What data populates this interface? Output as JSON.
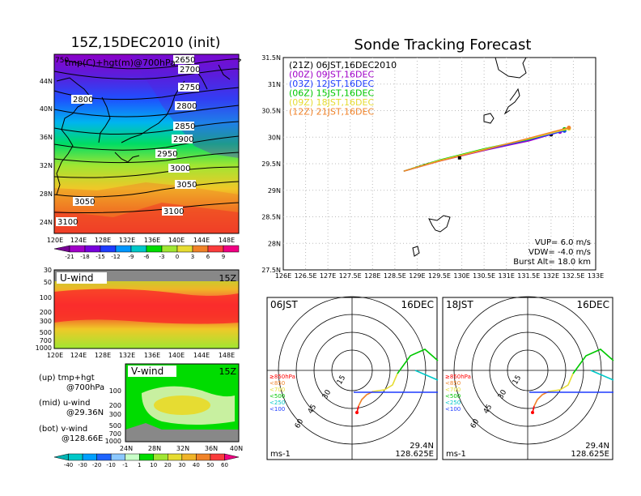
{
  "init_title": "15Z,15DEC2010 (init)",
  "main_title": "Sonde Tracking Forecast",
  "map_panel": {
    "label": "tmp(C)+hgt(m)@700hPa",
    "corner_label": "750",
    "xticks": [
      "120E",
      "124E",
      "128E",
      "132E",
      "136E",
      "140E",
      "144E",
      "148E"
    ],
    "yticks": [
      "44N",
      "40N",
      "36N",
      "32N",
      "28N",
      "24N"
    ],
    "contours": [
      "2700",
      "2750",
      "2800",
      "2800",
      "2850",
      "2900",
      "2950",
      "3000",
      "3050",
      "3050",
      "3100",
      "3100",
      "2650"
    ],
    "colorbar_labels": [
      "-21",
      "-18",
      "-15",
      "-12",
      "-9",
      "-6",
      "-3",
      "0",
      "3",
      "6",
      "9"
    ],
    "colorbar_colors": [
      "#a000c8",
      "#7800dc",
      "#1e3cff",
      "#0096ff",
      "#00c8c8",
      "#00dc00",
      "#a0e632",
      "#e6dc32",
      "#f08228",
      "#fa3c3c",
      "#f00082"
    ]
  },
  "u_panel": {
    "title": "U-wind",
    "time": "15Z",
    "yticks": [
      "30",
      "50",
      "100",
      "200",
      "300",
      "500",
      "700",
      "1000"
    ],
    "xticks": [
      "120E",
      "124E",
      "128E",
      "132E",
      "136E",
      "140E",
      "144E",
      "148E"
    ]
  },
  "v_panel": {
    "title": "V-wind",
    "time": "15Z",
    "yticks": [
      "100",
      "200",
      "300",
      "500",
      "700",
      "1000"
    ],
    "xticks": [
      "24N",
      "28N",
      "32N",
      "36N",
      "40N"
    ]
  },
  "notes": [
    {
      "a": "(up) tmp+hgt",
      "b": "@700hPa"
    },
    {
      "a": "(mid) u-wind",
      "b": "@29.36N"
    },
    {
      "a": "(bot) v-wind",
      "b": "@128.66E"
    }
  ],
  "wind_colorbar": {
    "labels": [
      "-40",
      "-30",
      "-20",
      "-10",
      "-1",
      "1",
      "10",
      "20",
      "30",
      "40",
      "50",
      "60"
    ],
    "colors": [
      "#00c8c8",
      "#00a0ff",
      "#1e64ff",
      "#8cc8ff",
      "#c8ffc8",
      "#00dc00",
      "#a0e632",
      "#e6dc32",
      "#f0b428",
      "#f08228",
      "#fa3c3c",
      "#f00082"
    ]
  },
  "track": {
    "legend": [
      {
        "text": "(21Z) 06JST,16DEC2010",
        "color": "#000000"
      },
      {
        "text": "(00Z) 09JST,16DEC",
        "color": "#a000c8"
      },
      {
        "text": "(03Z) 12JST,16DEC",
        "color": "#1e3cff"
      },
      {
        "text": "(06Z) 15JST,16DEC",
        "color": "#00c800"
      },
      {
        "text": "(09Z) 18JST,16DEC",
        "color": "#e6dc32"
      },
      {
        "text": "(12Z) 21JST,16DEC",
        "color": "#f08228"
      }
    ],
    "xticks": [
      "126E",
      "126.5E",
      "127E",
      "127.5E",
      "128E",
      "128.5E",
      "129E",
      "129.5E",
      "130E",
      "130.5E",
      "131E",
      "131.5E",
      "132E",
      "132.5E",
      "133E"
    ],
    "yticks": [
      "31.5N",
      "31N",
      "30.5N",
      "30N",
      "29.5N",
      "29N",
      "28.5N",
      "28N",
      "27.5N"
    ],
    "vup": "VUP= 6.0 m/s",
    "vdw": "VDW= -4.0 m/s",
    "burst": "Burst Alt= 18.0 km"
  },
  "polar_left": {
    "time": "06JST",
    "date": "16DEC",
    "rings": [
      "15",
      "30",
      "45",
      "60"
    ],
    "legend": [
      "≥850hPa",
      "<850",
      "<700",
      "<500",
      "<250",
      "<100"
    ],
    "legend_colors": [
      "#ff0000",
      "#f08228",
      "#e6dc32",
      "#00c800",
      "#00c8c8",
      "#1e3cff"
    ],
    "units": "ms-1",
    "lat": "29.4N",
    "lon": "128.625E"
  },
  "polar_right": {
    "time": "18JST",
    "date": "16DEC",
    "rings": [
      "15",
      "30",
      "45",
      "60"
    ],
    "legend": [
      "≥850hPa",
      "<850",
      "<700",
      "<500",
      "<250",
      "<100"
    ],
    "legend_colors": [
      "#ff0000",
      "#f08228",
      "#e6dc32",
      "#00c800",
      "#00c8c8",
      "#1e3cff"
    ],
    "units": "ms-1",
    "lat": "29.4N",
    "lon": "128.625E"
  },
  "chart_data": [
    {
      "type": "line",
      "title": "Sonde Tracking Forecast",
      "xlim": [
        126,
        133
      ],
      "ylim": [
        27.5,
        31.5
      ],
      "series": [
        {
          "name": "(21Z) 06JST,16DEC2010",
          "x": [
            128.7,
            129.2,
            129.8,
            130.2,
            131.0,
            131.7,
            132.0
          ],
          "y": [
            29.36,
            29.5,
            29.62,
            29.7,
            29.85,
            30.0,
            30.05
          ]
        },
        {
          "name": "(00Z) 09JST,16DEC",
          "x": [
            128.7,
            129.5,
            130.5,
            131.5,
            132.2
          ],
          "y": [
            29.36,
            29.55,
            29.75,
            29.93,
            30.1
          ]
        },
        {
          "name": "(03Z) 12JST,16DEC",
          "x": [
            128.7,
            129.5,
            130.5,
            131.5,
            132.3
          ],
          "y": [
            29.36,
            29.56,
            29.76,
            29.95,
            30.12
          ]
        },
        {
          "name": "(06Z) 15JST,16DEC",
          "x": [
            128.7,
            129.5,
            130.5,
            131.5,
            132.3
          ],
          "y": [
            29.36,
            29.57,
            29.78,
            29.96,
            30.15
          ]
        },
        {
          "name": "(09Z) 18JST,16DEC",
          "x": [
            128.7,
            129.5,
            130.5,
            131.5,
            132.4
          ],
          "y": [
            29.36,
            29.56,
            29.77,
            29.97,
            30.16
          ]
        },
        {
          "name": "(12Z) 21JST,16DEC",
          "x": [
            128.7,
            129.5,
            130.5,
            131.5,
            132.4
          ],
          "y": [
            29.36,
            29.55,
            29.76,
            29.98,
            30.18
          ]
        }
      ]
    }
  ]
}
